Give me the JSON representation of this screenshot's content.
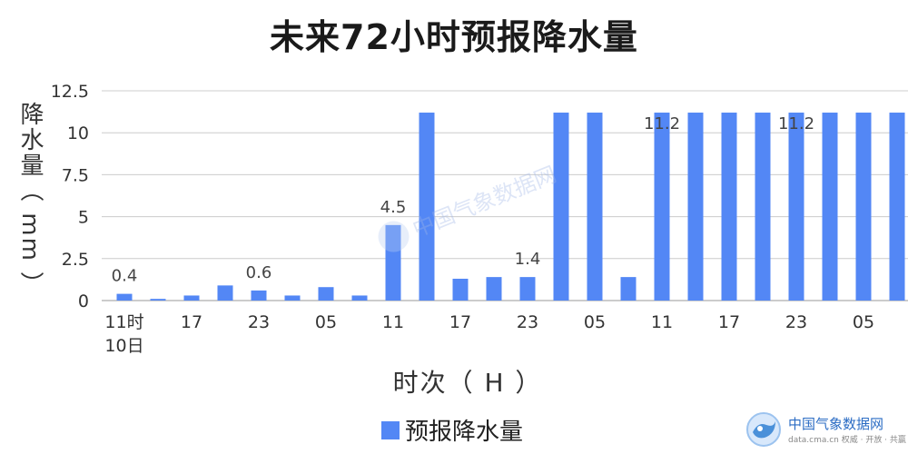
{
  "chart_data": {
    "type": "bar",
    "title": "未来72小时预报降水量",
    "xlabel": "时次（ H ）",
    "ylabel": "降水量（ mm ）",
    "ylim": [
      0,
      12.5
    ],
    "yticks": [
      "0",
      "2.5",
      "5",
      "7.5",
      "10",
      "12.5"
    ],
    "grid": true,
    "legend_position": "bottom",
    "series": [
      {
        "name": "预报降水量",
        "values": [
          0.4,
          0.1,
          0.3,
          0.9,
          0.6,
          0.3,
          0.8,
          0.3,
          4.5,
          11.2,
          1.3,
          1.4,
          1.4,
          11.2,
          11.2,
          1.4,
          11.2,
          11.2,
          11.2,
          11.2,
          11.2,
          11.2,
          11.2,
          11.2
        ]
      }
    ],
    "x_tick_labels": [
      "11时",
      "17",
      "23",
      "05",
      "11",
      "17",
      "23",
      "05",
      "11",
      "17",
      "23",
      "05"
    ],
    "date_label": "10日",
    "data_labels": [
      {
        "index": 0,
        "text": "0.4"
      },
      {
        "index": 4,
        "text": "0.6"
      },
      {
        "index": 8,
        "text": "4.5"
      },
      {
        "index": 12,
        "text": "1.4"
      },
      {
        "index": 16,
        "text": "11.2"
      },
      {
        "index": 20,
        "text": "11.2"
      }
    ],
    "color": "#5387f5"
  },
  "watermark": {
    "center_text": "中国气象数据网",
    "brand_name": "中国气象数据网",
    "brand_sub": "data.cma.cn 权威 · 开放 · 共赢"
  }
}
